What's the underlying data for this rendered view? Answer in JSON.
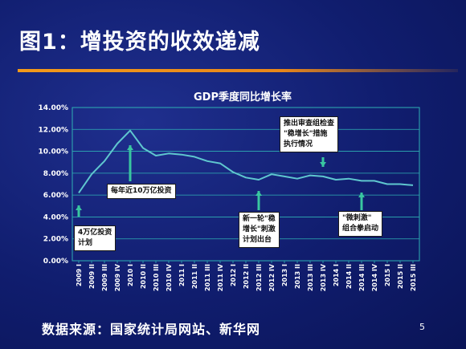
{
  "slide": {
    "title": "图1：增投资的收效递减",
    "source": "数据来源：国家统计局网站、新华网",
    "page_number": "5"
  },
  "colors": {
    "line": "#5fc7cf",
    "grid": "#2fb0b4",
    "marker": "#39c6a0",
    "title_rule": "#f39a1a"
  },
  "chart_data": {
    "type": "line",
    "title": "GDP季度同比增长率",
    "ylim": [
      0,
      14
    ],
    "y_ticks": [
      "0.00%",
      "2.00%",
      "4.00%",
      "6.00%",
      "8.00%",
      "10.00%",
      "12.00%",
      "14.00%"
    ],
    "categories": [
      "2009 I",
      "2009 II",
      "2009 III",
      "2009 IV",
      "2010 I",
      "2010 II",
      "2010 III",
      "2010 IV",
      "2011 I",
      "2011 II",
      "2011 III",
      "2011 IV",
      "2012 I",
      "2012 II",
      "2012 III",
      "2012 IV",
      "2013 I",
      "2013 II",
      "2013 III",
      "2013 IV",
      "2014 I",
      "2014 II",
      "2014 III",
      "2014 IV",
      "2015 I",
      "2015 II",
      "2015 III"
    ],
    "series": [
      {
        "values": [
          6.2,
          7.9,
          9.1,
          10.7,
          11.9,
          10.3,
          9.6,
          9.8,
          9.7,
          9.5,
          9.1,
          8.9,
          8.1,
          7.6,
          7.4,
          7.9,
          7.7,
          7.5,
          7.8,
          7.7,
          7.4,
          7.5,
          7.3,
          7.3,
          7.0,
          7.0,
          6.9
        ]
      }
    ],
    "annotations": [
      {
        "text": "4万亿投资\n计划",
        "category_index": 0
      },
      {
        "text": "每年近10万亿投资",
        "category_index": 4
      },
      {
        "text": "新一轮\"稳\n增长\"刺激\n计划出台",
        "category_index": 14
      },
      {
        "text": "推出审查组检查\n\"稳增长\"措施\n执行情况",
        "category_index": 19
      },
      {
        "text": "\"微刺激\"\n组合拳启动",
        "category_index": 22
      }
    ]
  }
}
